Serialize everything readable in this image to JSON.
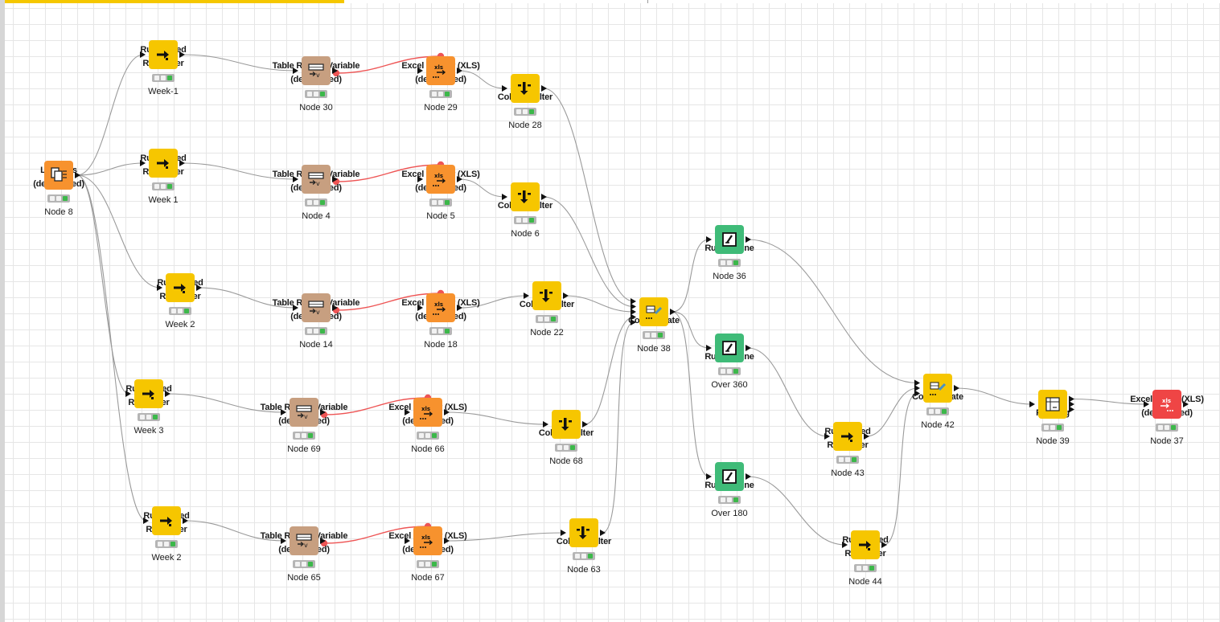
{
  "colors": {
    "source": "#f7922e",
    "manipulator": "#f6c600",
    "converter": "#c79f80",
    "learner": "#3fbb78",
    "sink": "#ef4545",
    "flow_variable": "#ee5555",
    "data_link": "#9a9a9a"
  },
  "nodes": [
    {
      "id": "n8",
      "name": "List Files\n(deprecated)",
      "label": "Node 8",
      "type": "source",
      "icon": "list-files-icon"
    },
    {
      "id": "rf1",
      "name": "Rule-based\nRow Filter",
      "label": "Week-1",
      "type": "manipulator",
      "icon": "row-filter-icon"
    },
    {
      "id": "n30",
      "name": "Table Row to Variable\n(deprecated)",
      "label": "Node 30",
      "type": "converter",
      "icon": "table-row-to-variable-icon"
    },
    {
      "id": "n29",
      "name": "Excel Reader (XLS)\n(deprecated)",
      "label": "Node 29",
      "type": "source",
      "icon": "excel-reader-icon"
    },
    {
      "id": "n28",
      "name": "Column Filter",
      "label": "Node 28",
      "type": "manipulator",
      "icon": "column-filter-icon"
    },
    {
      "id": "rf2",
      "name": "Rule-based\nRow Filter",
      "label": "Week 1",
      "type": "manipulator",
      "icon": "row-filter-icon"
    },
    {
      "id": "n4",
      "name": "Table Row to Variable\n(deprecated)",
      "label": "Node 4",
      "type": "converter",
      "icon": "table-row-to-variable-icon"
    },
    {
      "id": "n5",
      "name": "Excel Reader (XLS)\n(deprecated)",
      "label": "Node 5",
      "type": "source",
      "icon": "excel-reader-icon"
    },
    {
      "id": "n6",
      "name": "Column Filter",
      "label": "Node 6",
      "type": "manipulator",
      "icon": "column-filter-icon"
    },
    {
      "id": "rf3",
      "name": "Rule-based\nRow Filter",
      "label": "Week 2",
      "type": "manipulator",
      "icon": "row-filter-icon"
    },
    {
      "id": "n14",
      "name": "Table Row to Variable\n(deprecated)",
      "label": "Node 14",
      "type": "converter",
      "icon": "table-row-to-variable-icon"
    },
    {
      "id": "n18",
      "name": "Excel Reader (XLS)\n(deprecated)",
      "label": "Node 18",
      "type": "source",
      "icon": "excel-reader-icon"
    },
    {
      "id": "n22",
      "name": "Column Filter",
      "label": "Node 22",
      "type": "manipulator",
      "icon": "column-filter-icon"
    },
    {
      "id": "rf4",
      "name": "Rule-based\nRow Filter",
      "label": "Week 3",
      "type": "manipulator",
      "icon": "row-filter-icon"
    },
    {
      "id": "n69",
      "name": "Table Row to Variable\n(deprecated)",
      "label": "Node 69",
      "type": "converter",
      "icon": "table-row-to-variable-icon"
    },
    {
      "id": "n66",
      "name": "Excel Reader (XLS)\n(deprecated)",
      "label": "Node 66",
      "type": "source",
      "icon": "excel-reader-icon"
    },
    {
      "id": "n68",
      "name": "Column Filter",
      "label": "Node 68",
      "type": "manipulator",
      "icon": "column-filter-icon"
    },
    {
      "id": "rf5",
      "name": "Rule-based\nRow Filter",
      "label": "Week 2",
      "type": "manipulator",
      "icon": "row-filter-icon"
    },
    {
      "id": "n65",
      "name": "Table Row to Variable\n(deprecated)",
      "label": "Node 65",
      "type": "converter",
      "icon": "table-row-to-variable-icon"
    },
    {
      "id": "n67",
      "name": "Excel Reader (XLS)\n(deprecated)",
      "label": "Node 67",
      "type": "source",
      "icon": "excel-reader-icon"
    },
    {
      "id": "n63",
      "name": "Column Filter",
      "label": "Node 63",
      "type": "manipulator",
      "icon": "column-filter-icon"
    },
    {
      "id": "n38",
      "name": "Concatenate",
      "label": "Node 38",
      "type": "manipulator",
      "icon": "concatenate-icon"
    },
    {
      "id": "n36",
      "name": "Rule Engine",
      "label": "Node 36",
      "type": "learner",
      "icon": "rule-engine-icon"
    },
    {
      "id": "o360",
      "name": "Rule Engine",
      "label": "Over 360",
      "type": "learner",
      "icon": "rule-engine-icon"
    },
    {
      "id": "o180",
      "name": "Rule Engine",
      "label": "Over 180",
      "type": "learner",
      "icon": "rule-engine-icon"
    },
    {
      "id": "n43",
      "name": "Rule-based\nRow Filter",
      "label": "Node 43",
      "type": "manipulator",
      "icon": "row-filter-icon"
    },
    {
      "id": "n44",
      "name": "Rule-based\nRow Filter",
      "label": "Node 44",
      "type": "manipulator",
      "icon": "row-filter-icon"
    },
    {
      "id": "n42",
      "name": "Concatenate",
      "label": "Node 42",
      "type": "manipulator",
      "icon": "concatenate-icon"
    },
    {
      "id": "n39",
      "name": "Pivoting",
      "label": "Node 39",
      "type": "manipulator",
      "icon": "pivoting-icon"
    },
    {
      "id": "n37",
      "name": "Excel Writer (XLS)\n(deprecated)",
      "label": "Node 37",
      "type": "sink",
      "icon": "excel-writer-icon"
    }
  ],
  "connections": [
    {
      "from": "n8",
      "to": "rf1",
      "kind": "data"
    },
    {
      "from": "n8",
      "to": "rf2",
      "kind": "data"
    },
    {
      "from": "n8",
      "to": "rf3",
      "kind": "data"
    },
    {
      "from": "n8",
      "to": "rf4",
      "kind": "data"
    },
    {
      "from": "n8",
      "to": "rf5",
      "kind": "data"
    },
    {
      "from": "rf1",
      "to": "n30",
      "kind": "data"
    },
    {
      "from": "rf2",
      "to": "n4",
      "kind": "data"
    },
    {
      "from": "rf3",
      "to": "n14",
      "kind": "data"
    },
    {
      "from": "rf4",
      "to": "n69",
      "kind": "data"
    },
    {
      "from": "rf5",
      "to": "n65",
      "kind": "data"
    },
    {
      "from": "n30",
      "to": "n29",
      "kind": "flow_variable"
    },
    {
      "from": "n4",
      "to": "n5",
      "kind": "flow_variable"
    },
    {
      "from": "n14",
      "to": "n18",
      "kind": "flow_variable"
    },
    {
      "from": "n69",
      "to": "n66",
      "kind": "flow_variable"
    },
    {
      "from": "n65",
      "to": "n67",
      "kind": "flow_variable"
    },
    {
      "from": "n29",
      "to": "n28",
      "kind": "data"
    },
    {
      "from": "n5",
      "to": "n6",
      "kind": "data"
    },
    {
      "from": "n18",
      "to": "n22",
      "kind": "data"
    },
    {
      "from": "n66",
      "to": "n68",
      "kind": "data"
    },
    {
      "from": "n67",
      "to": "n63",
      "kind": "data"
    },
    {
      "from": "n28",
      "to": "n38",
      "kind": "data"
    },
    {
      "from": "n6",
      "to": "n38",
      "kind": "data"
    },
    {
      "from": "n22",
      "to": "n38",
      "kind": "data"
    },
    {
      "from": "n68",
      "to": "n38",
      "kind": "data"
    },
    {
      "from": "n63",
      "to": "n38",
      "kind": "data"
    },
    {
      "from": "n38",
      "to": "n36",
      "kind": "data"
    },
    {
      "from": "n38",
      "to": "o360",
      "kind": "data"
    },
    {
      "from": "n38",
      "to": "o180",
      "kind": "data"
    },
    {
      "from": "o360",
      "to": "n43",
      "kind": "data"
    },
    {
      "from": "o180",
      "to": "n44",
      "kind": "data"
    },
    {
      "from": "n36",
      "to": "n42",
      "kind": "data"
    },
    {
      "from": "n43",
      "to": "n42",
      "kind": "data"
    },
    {
      "from": "n44",
      "to": "n42",
      "kind": "data"
    },
    {
      "from": "n42",
      "to": "n39",
      "kind": "data"
    },
    {
      "from": "n39",
      "to": "n37",
      "kind": "data"
    }
  ]
}
